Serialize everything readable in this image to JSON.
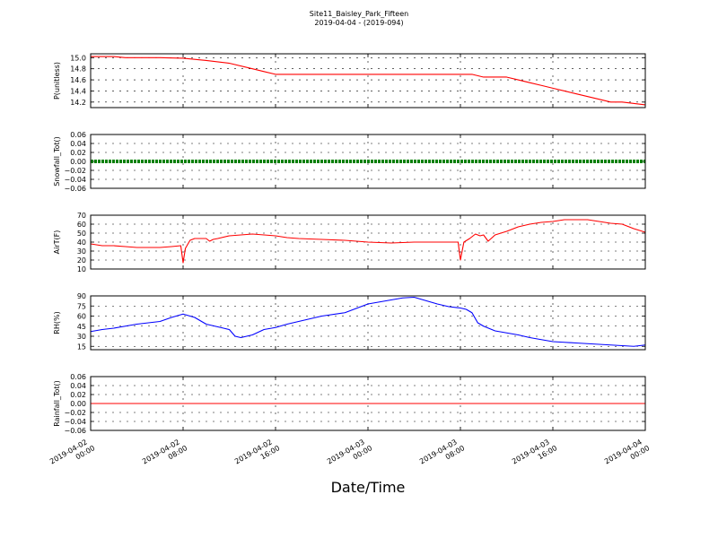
{
  "figure": {
    "title": "Site11_Baisley_Park_Fifteen",
    "subtitle": "2019-04-04 - (2019-094)",
    "xlabel": "Date/Time"
  },
  "chart_data": [
    {
      "type": "line",
      "ylabel": "P(unitless)",
      "color": "#ff0000",
      "ylim": [
        14.1,
        15.07
      ],
      "yticks": [
        14.2,
        14.4,
        14.6,
        14.8,
        15.0
      ],
      "ytick_labels": [
        "14.2",
        "14.4",
        "14.6",
        "14.8",
        "15.0"
      ],
      "grid": true,
      "x": [
        0,
        2,
        3,
        6,
        8,
        10,
        12,
        14,
        15,
        16,
        18,
        22,
        24,
        33,
        34,
        36,
        37,
        38,
        39,
        40,
        41,
        42,
        44,
        45,
        46,
        48
      ],
      "y": [
        15.02,
        15.02,
        15.0,
        15.0,
        14.99,
        14.95,
        14.9,
        14.8,
        14.75,
        14.7,
        14.7,
        14.7,
        14.7,
        14.7,
        14.65,
        14.65,
        14.6,
        14.55,
        14.5,
        14.45,
        14.4,
        14.35,
        14.25,
        14.2,
        14.2,
        14.15
      ]
    },
    {
      "type": "line",
      "ylabel": "Snowfall_Tot()",
      "color": "#008000",
      "ylim": [
        -0.06,
        0.06
      ],
      "yticks": [
        -0.06,
        -0.04,
        -0.02,
        0.0,
        0.02,
        0.04,
        0.06
      ],
      "ytick_labels": [
        "−0.06",
        "−0.04",
        "−0.02",
        "0.00",
        "0.02",
        "0.04",
        "0.06"
      ],
      "grid": true,
      "x": [
        0,
        48
      ],
      "y": [
        0,
        0
      ]
    },
    {
      "type": "line",
      "ylabel": "AirT(F)",
      "color": "#ff0000",
      "ylim": [
        10,
        70
      ],
      "yticks": [
        10,
        20,
        30,
        40,
        50,
        60,
        70
      ],
      "ytick_labels": [
        "10",
        "20",
        "30",
        "40",
        "50",
        "60",
        "70"
      ],
      "grid": true,
      "x": [
        0,
        1,
        2,
        3,
        4,
        5,
        6,
        7,
        7.8,
        8.0,
        8.2,
        8.6,
        9,
        10,
        10.3,
        10.6,
        11,
        12,
        13,
        14,
        15,
        16,
        17,
        18,
        20,
        22,
        24,
        26,
        28,
        30,
        31.8,
        32.0,
        32.3,
        32.8,
        33.3,
        33.7,
        34,
        34.4,
        35,
        36,
        37,
        38,
        39,
        40,
        41,
        42,
        43,
        44,
        45,
        46,
        47,
        48
      ],
      "y": [
        38,
        36,
        36,
        35,
        34,
        34,
        34,
        35,
        36,
        17,
        33,
        42,
        44,
        44,
        41,
        43,
        44,
        47,
        48,
        49,
        48,
        47,
        45,
        44,
        43,
        42,
        40,
        39,
        40,
        40,
        40,
        20,
        40,
        44,
        49,
        47,
        48,
        41,
        48,
        52,
        57,
        60,
        62,
        63,
        65,
        65,
        65,
        63,
        61,
        60,
        55,
        51
      ]
    },
    {
      "type": "line",
      "ylabel": "RH(%)",
      "color": "#0000ff",
      "ylim": [
        10,
        90
      ],
      "yticks": [
        15,
        30,
        45,
        60,
        75,
        90
      ],
      "ytick_labels": [
        "15",
        "30",
        "45",
        "60",
        "75",
        "90"
      ],
      "grid": true,
      "x": [
        0,
        1,
        2,
        3,
        4,
        5,
        6,
        7,
        8,
        9,
        10,
        11,
        11.5,
        12,
        12.5,
        13,
        14,
        15,
        16,
        17,
        18,
        20,
        22,
        24,
        26,
        27,
        28,
        29,
        30,
        31,
        32,
        32.5,
        33,
        33.5,
        34,
        35,
        36,
        37,
        38,
        39,
        40,
        41,
        42,
        43,
        44,
        45,
        46,
        47,
        48
      ],
      "y": [
        37,
        40,
        42,
        45,
        48,
        50,
        52,
        58,
        63,
        58,
        48,
        44,
        42,
        40,
        30,
        28,
        32,
        40,
        43,
        48,
        52,
        60,
        65,
        78,
        84,
        87,
        88,
        83,
        78,
        74,
        72,
        70,
        65,
        50,
        45,
        38,
        35,
        32,
        28,
        25,
        22,
        21,
        20,
        19,
        18,
        17,
        16,
        15,
        17
      ]
    },
    {
      "type": "line",
      "ylabel": "Rainfall_Tot()",
      "color": "#ff0000",
      "ylim": [
        -0.06,
        0.06
      ],
      "yticks": [
        -0.06,
        -0.04,
        -0.02,
        0.0,
        0.02,
        0.04,
        0.06
      ],
      "ytick_labels": [
        "−0.06",
        "−0.04",
        "−0.02",
        "0.00",
        "0.02",
        "0.04",
        "0.06"
      ],
      "grid": true,
      "x": [
        0,
        48
      ],
      "y": [
        0,
        0
      ]
    }
  ],
  "x_axis": {
    "range": [
      0,
      48
    ],
    "ticks": [
      0,
      8,
      16,
      24,
      32,
      40,
      48
    ],
    "tick_labels": [
      [
        "2019-04-02",
        "00:00"
      ],
      [
        "2019-04-02",
        "08:00"
      ],
      [
        "2019-04-02",
        "16:00"
      ],
      [
        "2019-04-03",
        "00:00"
      ],
      [
        "2019-04-03",
        "08:00"
      ],
      [
        "2019-04-03",
        "16:00"
      ],
      [
        "2019-04-04",
        "00:00"
      ]
    ]
  }
}
